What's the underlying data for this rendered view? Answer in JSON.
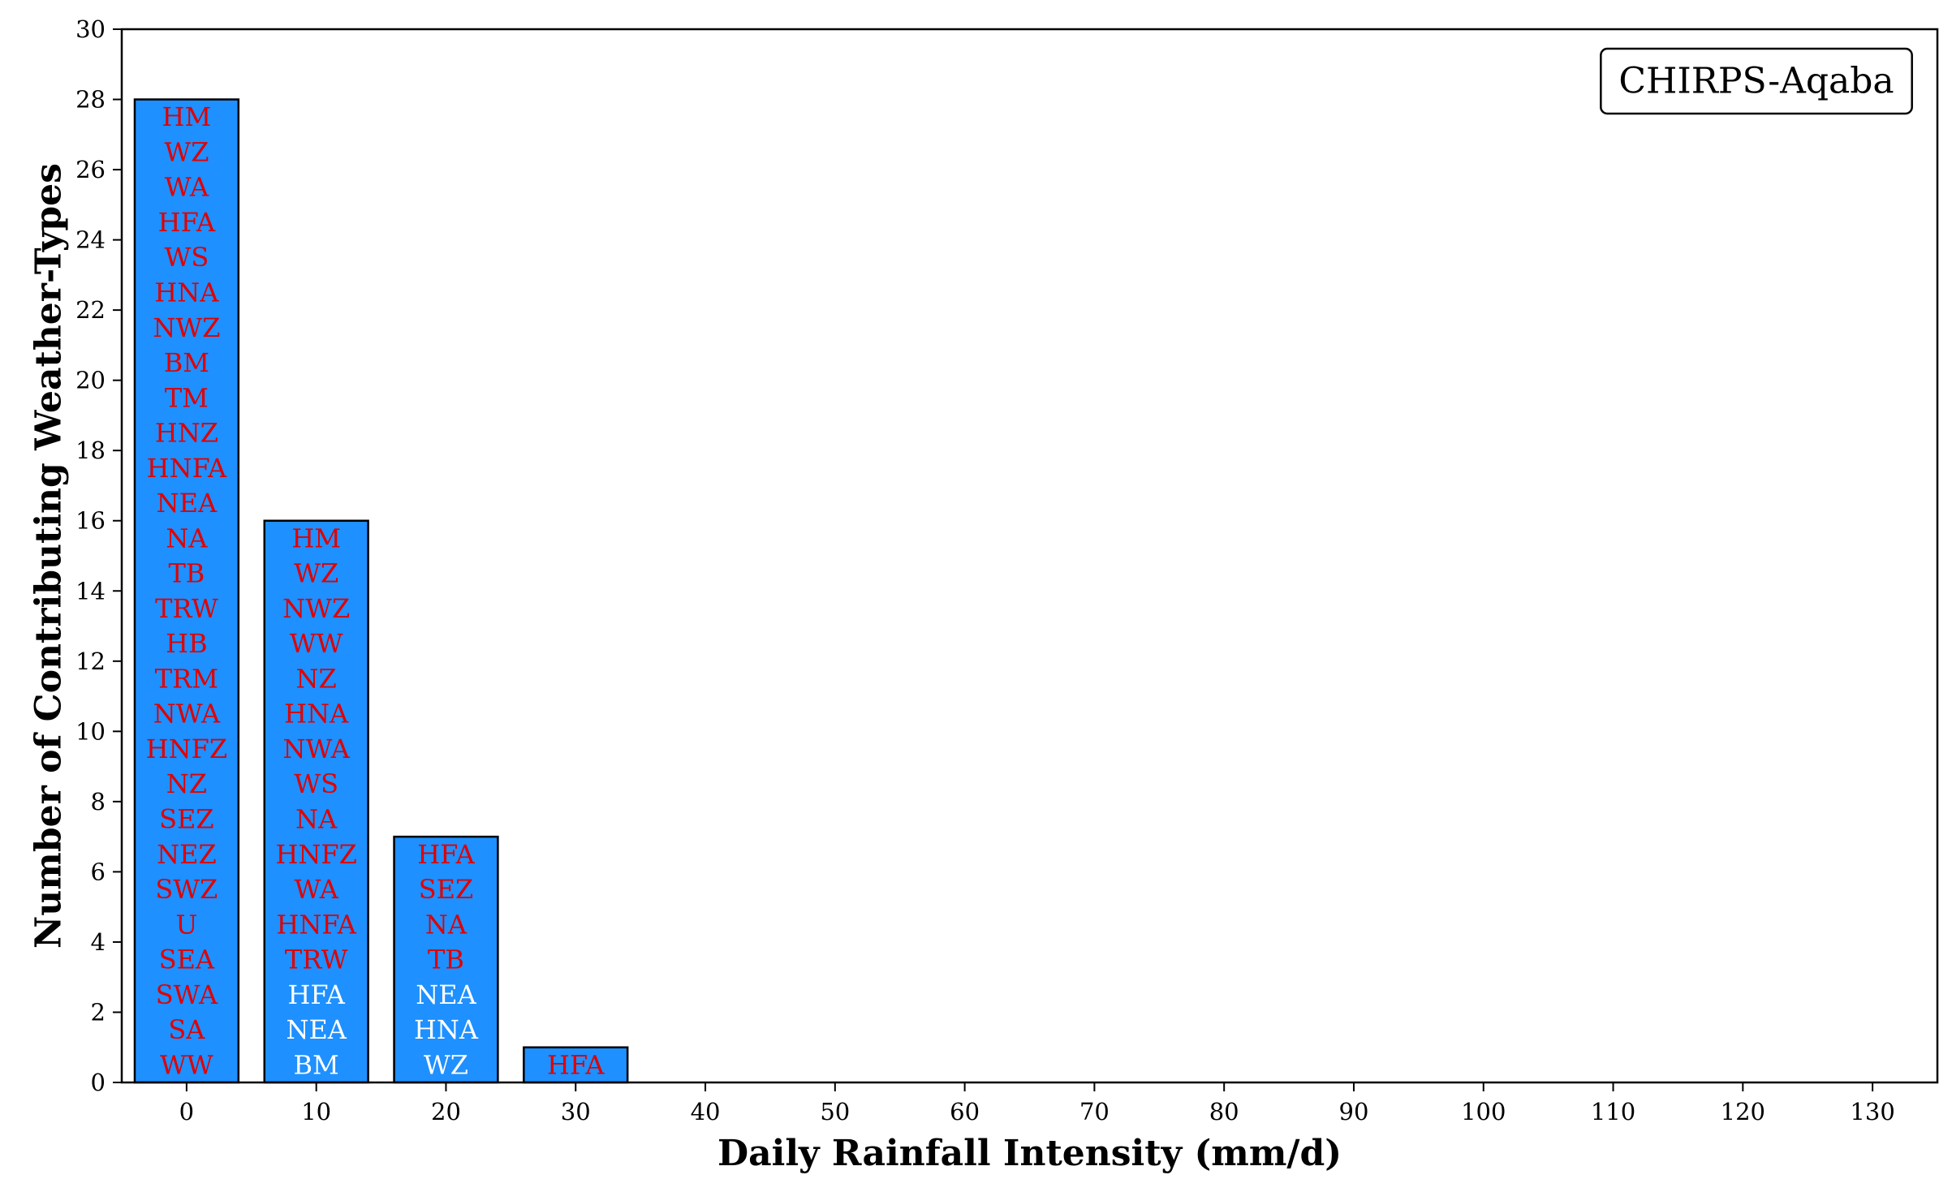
{
  "chart_data": {
    "type": "bar",
    "xlabel": "Daily Rainfall Intensity (mm/d)",
    "ylabel": "Number of Contributing Weather-Types",
    "legend": "CHIRPS-Aqaba",
    "legend_position": "top-right",
    "xlim": [
      -5,
      135
    ],
    "ylim": [
      0,
      30
    ],
    "x_ticks": [
      0,
      10,
      20,
      30,
      40,
      50,
      60,
      70,
      80,
      90,
      100,
      110,
      120,
      130
    ],
    "y_ticks": [
      0,
      2,
      4,
      6,
      8,
      10,
      12,
      14,
      16,
      18,
      20,
      22,
      24,
      26,
      28,
      30
    ],
    "bar_width": 8,
    "bar_color": "#1e90ff",
    "label_colors": {
      "red": "#e00000",
      "white": "#ffffff"
    },
    "grid": false,
    "bars": [
      {
        "x": 0,
        "value": 28,
        "labels": [
          {
            "text": "WW",
            "color": "red"
          },
          {
            "text": "SA",
            "color": "red"
          },
          {
            "text": "SWA",
            "color": "red"
          },
          {
            "text": "SEA",
            "color": "red"
          },
          {
            "text": "U",
            "color": "red"
          },
          {
            "text": "SWZ",
            "color": "red"
          },
          {
            "text": "NEZ",
            "color": "red"
          },
          {
            "text": "SEZ",
            "color": "red"
          },
          {
            "text": "NZ",
            "color": "red"
          },
          {
            "text": "HNFZ",
            "color": "red"
          },
          {
            "text": "NWA",
            "color": "red"
          },
          {
            "text": "TRM",
            "color": "red"
          },
          {
            "text": "HB",
            "color": "red"
          },
          {
            "text": "TRW",
            "color": "red"
          },
          {
            "text": "TB",
            "color": "red"
          },
          {
            "text": "NA",
            "color": "red"
          },
          {
            "text": "NEA",
            "color": "red"
          },
          {
            "text": "HNFA",
            "color": "red"
          },
          {
            "text": "HNZ",
            "color": "red"
          },
          {
            "text": "TM",
            "color": "red"
          },
          {
            "text": "BM",
            "color": "red"
          },
          {
            "text": "NWZ",
            "color": "red"
          },
          {
            "text": "HNA",
            "color": "red"
          },
          {
            "text": "WS",
            "color": "red"
          },
          {
            "text": "HFA",
            "color": "red"
          },
          {
            "text": "WA",
            "color": "red"
          },
          {
            "text": "WZ",
            "color": "red"
          },
          {
            "text": "HM",
            "color": "red"
          }
        ]
      },
      {
        "x": 10,
        "value": 16,
        "labels": [
          {
            "text": "BM",
            "color": "white"
          },
          {
            "text": "NEA",
            "color": "white"
          },
          {
            "text": "HFA",
            "color": "white"
          },
          {
            "text": "TRW",
            "color": "red"
          },
          {
            "text": "HNFA",
            "color": "red"
          },
          {
            "text": "WA",
            "color": "red"
          },
          {
            "text": "HNFZ",
            "color": "red"
          },
          {
            "text": "NA",
            "color": "red"
          },
          {
            "text": "WS",
            "color": "red"
          },
          {
            "text": "NWA",
            "color": "red"
          },
          {
            "text": "HNA",
            "color": "red"
          },
          {
            "text": "NZ",
            "color": "red"
          },
          {
            "text": "WW",
            "color": "red"
          },
          {
            "text": "NWZ",
            "color": "red"
          },
          {
            "text": "WZ",
            "color": "red"
          },
          {
            "text": "HM",
            "color": "red"
          }
        ]
      },
      {
        "x": 20,
        "value": 7,
        "labels": [
          {
            "text": "WZ",
            "color": "white"
          },
          {
            "text": "HNA",
            "color": "white"
          },
          {
            "text": "NEA",
            "color": "white"
          },
          {
            "text": "TB",
            "color": "red"
          },
          {
            "text": "NA",
            "color": "red"
          },
          {
            "text": "SEZ",
            "color": "red"
          },
          {
            "text": "HFA",
            "color": "red"
          }
        ]
      },
      {
        "x": 30,
        "value": 1,
        "labels": [
          {
            "text": "HFA",
            "color": "red"
          }
        ]
      }
    ]
  }
}
